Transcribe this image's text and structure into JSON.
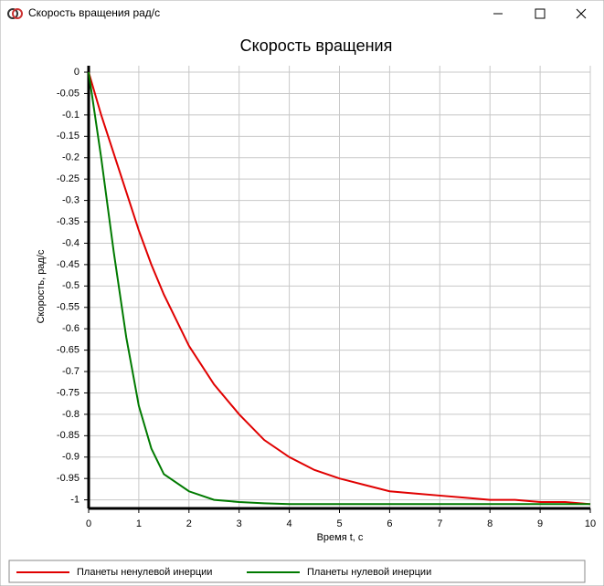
{
  "window": {
    "title": "Скорость вращения рад/с"
  },
  "chart_data": {
    "type": "line",
    "title": "Скорость вращения",
    "x_label": "Время t, с",
    "y_label": "Скорость, рад/с",
    "x": [
      0,
      0.25,
      0.5,
      0.75,
      1,
      1.25,
      1.5,
      2,
      2.5,
      3,
      3.5,
      4,
      4.5,
      5,
      5.5,
      6,
      6.5,
      7,
      7.5,
      8,
      8.5,
      9,
      9.5,
      10
    ],
    "series": [
      {
        "name": "Планеты ненулевой инерции",
        "color": "#e00000",
        "values": [
          0,
          -0.1,
          -0.19,
          -0.28,
          -0.37,
          -0.45,
          -0.52,
          -0.64,
          -0.73,
          -0.8,
          -0.86,
          -0.9,
          -0.93,
          -0.95,
          -0.965,
          -0.98,
          -0.985,
          -0.99,
          -0.995,
          -1.0,
          -1.0,
          -1.005,
          -1.005,
          -1.01
        ]
      },
      {
        "name": "Планеты нулевой инерции",
        "color": "#007a00",
        "values": [
          0,
          -0.2,
          -0.42,
          -0.62,
          -0.78,
          -0.88,
          -0.94,
          -0.98,
          -1.0,
          -1.005,
          -1.008,
          -1.01,
          -1.01,
          -1.01,
          -1.01,
          -1.01,
          -1.01,
          -1.01,
          -1.01,
          -1.01,
          -1.01,
          -1.01,
          -1.01,
          -1.01
        ]
      }
    ],
    "xlim": [
      0,
      10
    ],
    "xticks": [
      0,
      1,
      2,
      3,
      4,
      5,
      6,
      7,
      8,
      9,
      10
    ],
    "ylim": [
      -1.02,
      0.015
    ],
    "yticks": [
      0,
      -0.05,
      -0.1,
      -0.15,
      -0.2,
      -0.25,
      -0.3,
      -0.35,
      -0.4,
      -0.45,
      -0.5,
      -0.55,
      -0.6,
      -0.65,
      -0.7,
      -0.75,
      -0.8,
      -0.85,
      -0.9,
      -0.95,
      -1
    ],
    "grid": true,
    "legend": "bottom"
  }
}
